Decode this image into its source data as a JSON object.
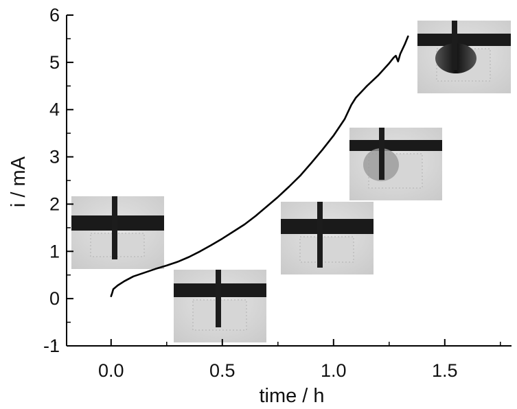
{
  "chart_data": {
    "type": "line",
    "xlabel": "time / h",
    "ylabel": "i / mA",
    "xlim": [
      -0.2,
      1.8
    ],
    "ylim": [
      -1,
      6
    ],
    "xticks": [
      0.0,
      0.5,
      1.0,
      1.5
    ],
    "xtick_labels": [
      "0.0",
      "0.5",
      "1.0",
      "1.5"
    ],
    "yticks": [
      -1,
      0,
      1,
      2,
      3,
      4,
      5,
      6
    ],
    "ytick_labels": [
      "-1",
      "0",
      "1",
      "2",
      "3",
      "4",
      "5",
      "6"
    ],
    "grid": false,
    "series": [
      {
        "color": "#000000",
        "x": [
          0.0,
          0.005,
          0.01,
          0.03,
          0.06,
          0.1,
          0.15,
          0.2,
          0.25,
          0.3,
          0.35,
          0.4,
          0.45,
          0.5,
          0.55,
          0.6,
          0.65,
          0.7,
          0.75,
          0.8,
          0.85,
          0.9,
          0.95,
          1.0,
          1.05,
          1.08,
          1.1,
          1.15,
          1.2,
          1.25,
          1.27,
          1.28,
          1.29,
          1.3,
          1.32,
          1.335
        ],
        "y": [
          0.05,
          0.12,
          0.2,
          0.28,
          0.37,
          0.47,
          0.55,
          0.63,
          0.7,
          0.78,
          0.88,
          1.0,
          1.13,
          1.27,
          1.42,
          1.57,
          1.75,
          1.95,
          2.15,
          2.37,
          2.6,
          2.87,
          3.15,
          3.45,
          3.8,
          4.1,
          4.25,
          4.5,
          4.72,
          4.98,
          5.1,
          5.14,
          5.02,
          5.18,
          5.38,
          5.55
        ]
      }
    ]
  },
  "insets": [
    {
      "name": "inset-photo-1"
    },
    {
      "name": "inset-photo-2"
    },
    {
      "name": "inset-photo-3"
    },
    {
      "name": "inset-photo-4"
    },
    {
      "name": "inset-photo-5"
    }
  ]
}
